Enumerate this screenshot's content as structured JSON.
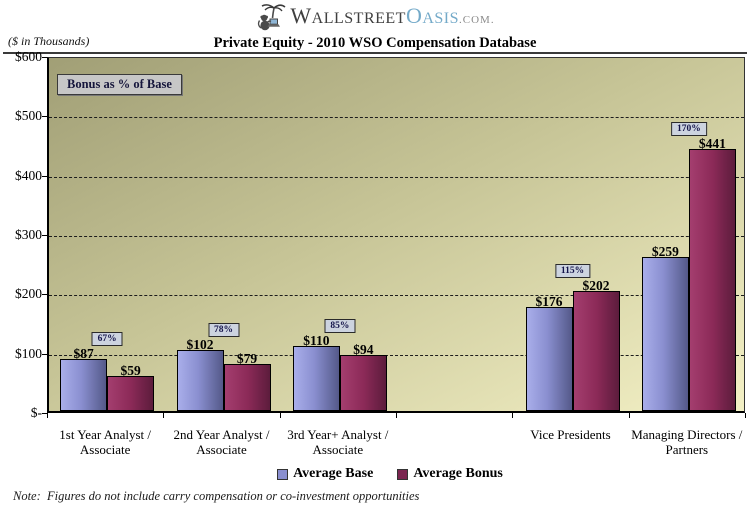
{
  "logo": {
    "w": "W",
    "allstreet": "ALLSTREET",
    "o": "O",
    "asis": "ASIS",
    "com": ".COM."
  },
  "title": "Private Equity - 2010 WSO Compensation Database",
  "units_label": "($ in Thousands)",
  "bonus_box_label": "Bonus as % of Base",
  "note": "Note:  Figures do not include carry compensation or co-investment opportunities",
  "colors": {
    "base_bar": "#8a8fd0",
    "bonus_bar": "#7b2550",
    "plot_background_top": "#a19f76",
    "plot_background_bottom": "#f3f0c5",
    "pct_box_background": "#ccd3df",
    "bonus_box_background": "#c7c7c7",
    "logo_blue": "#74aac9",
    "logo_gray": "#3f3f3f"
  },
  "chart_data": {
    "type": "bar",
    "title": "Private Equity - 2010 WSO Compensation Database",
    "ylabel": "($ in Thousands)",
    "ylim": [
      0,
      600
    ],
    "ytick_labels": [
      "$-",
      "$100",
      "$200",
      "$300",
      "$400",
      "$500",
      "$600"
    ],
    "grid": "horizontal-dashed",
    "legend_position": "bottom-center",
    "categories": [
      "1st Year Analyst / Associate",
      "2nd Year Analyst / Associate",
      "3rd Year+ Analyst / Associate",
      "Vice Presidents",
      "Managing Directors / Partners"
    ],
    "category_slots": [
      0,
      1,
      2,
      4,
      5
    ],
    "num_slots": 6,
    "series": [
      {
        "name": "Average Base",
        "values": [
          87,
          102,
          110,
          176,
          259
        ]
      },
      {
        "name": "Average Bonus",
        "values": [
          59,
          79,
          94,
          202,
          441
        ]
      }
    ],
    "value_labels": [
      [
        "$87",
        "$102",
        "$110",
        "$176",
        "$259"
      ],
      [
        "$59",
        "$79",
        "$94",
        "$202",
        "$441"
      ]
    ],
    "bonus_pct_labels": [
      "67%",
      "78%",
      "85%",
      "115%",
      "170%"
    ]
  }
}
